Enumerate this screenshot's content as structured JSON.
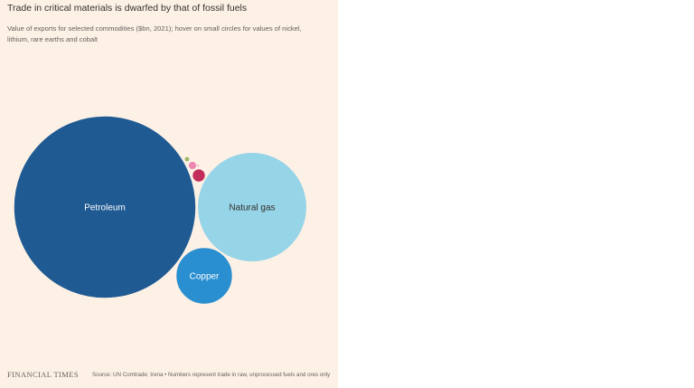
{
  "header": {
    "title": "Trade in critical materials is dwarfed by that of fossil fuels",
    "subtitle": "Value of exports for selected commodities ($bn, 2021); hover on small circles for values of nickel, lithium, rare earths and cobalt"
  },
  "chart_data": {
    "type": "bubble",
    "title": "Trade in critical materials is dwarfed by that of fossil fuels",
    "subtitle": "Value of exports for selected commodities ($bn, 2021); hover on small circles for values of nickel, lithium, rare earths and cobalt",
    "unit": "$bn",
    "year": 2021,
    "series": [
      {
        "label": "Petroleum",
        "value": 1010,
        "color": "#1f5a93",
        "text_color": "#ffffff"
      },
      {
        "label": "Natural gas",
        "value": 365,
        "color": "#96d4e7",
        "text_color": "#33302e"
      },
      {
        "label": "Copper",
        "value": 98,
        "color": "#2a8fd0",
        "text_color": "#ffffff"
      },
      {
        "label": "",
        "value": 5,
        "color": "#c22d5b"
      },
      {
        "label": "",
        "value": 2,
        "color": "#ee87b0"
      },
      {
        "label": "",
        "value": 0.8,
        "color": "#9db86a"
      },
      {
        "label": "",
        "value": 0.1,
        "color": "#c22d5b"
      }
    ]
  },
  "footer": {
    "logo": "FINANCIAL TIMES",
    "source": "Source: UN Comtrade; Irena • Numbers represent trade in raw, unprocessed fuels and ores only"
  }
}
